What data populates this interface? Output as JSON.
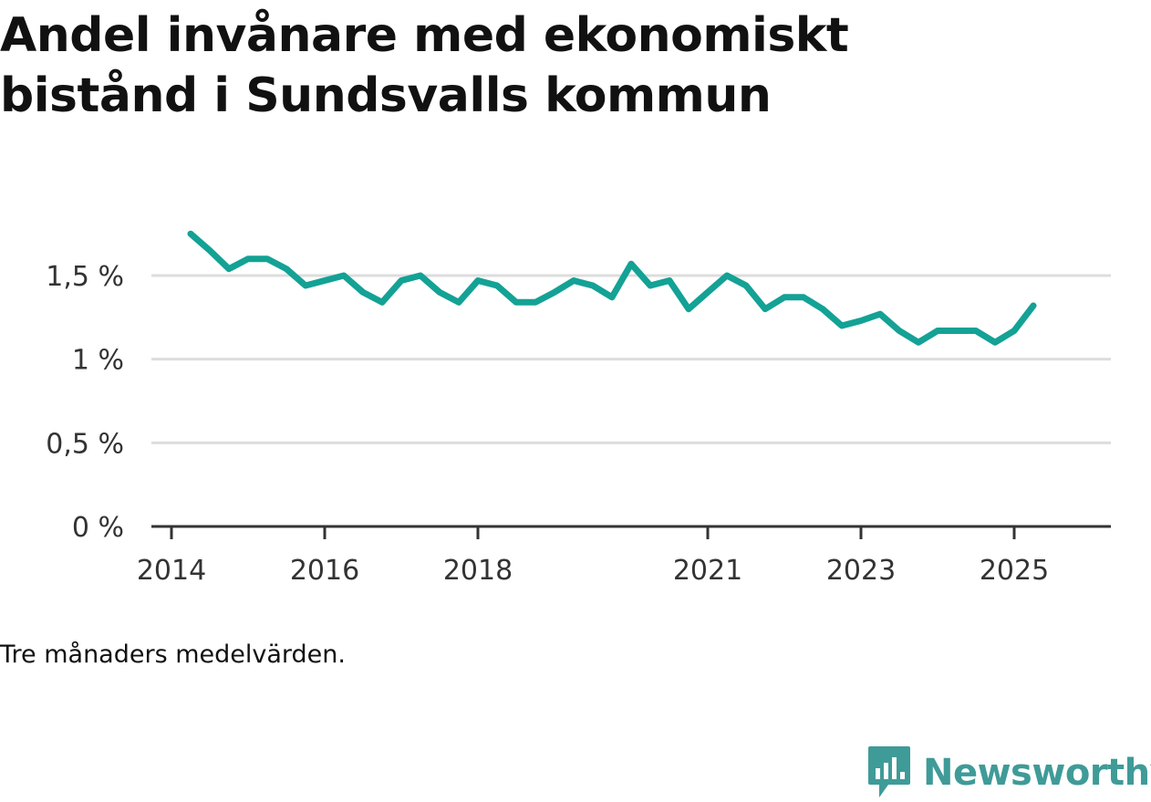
{
  "title": "Andel invånare med ekonomiskt bistånd i Sundsvalls kommun",
  "note": "Tre månaders medelvärden.",
  "logo": {
    "text": "Newsworthy",
    "icon": "chat-bar-chart-icon"
  },
  "colors": {
    "line": "#13a295",
    "grid": "#dddddd",
    "axis": "#333333",
    "logo": "#3f9b98"
  },
  "chart_data": {
    "type": "line",
    "title": "Andel invånare med ekonomiskt bistånd i Sundsvalls kommun",
    "xlabel": "",
    "ylabel": "",
    "grid": true,
    "ylim": [
      0,
      2.0
    ],
    "yticks": [
      {
        "value": 0,
        "label": "0 %"
      },
      {
        "value": 0.5,
        "label": "0,5 %"
      },
      {
        "value": 1,
        "label": "1 %"
      },
      {
        "value": 1.5,
        "label": "1,5 %"
      }
    ],
    "xlim": [
      "2014-01",
      "2025-12"
    ],
    "xticks": [
      {
        "value": "2014-01",
        "label": "2014"
      },
      {
        "value": "2016-01",
        "label": "2016"
      },
      {
        "value": "2018-01",
        "label": "2018"
      },
      {
        "value": "2021-01",
        "label": "2021"
      },
      {
        "value": "2023-01",
        "label": "2023"
      },
      {
        "value": "2025-01",
        "label": "2025"
      }
    ],
    "series": [
      {
        "x": [
          "2014-04",
          "2014-07",
          "2014-10",
          "2015-01",
          "2015-04",
          "2015-07",
          "2015-10",
          "2016-01",
          "2016-04",
          "2016-07",
          "2016-10",
          "2017-01",
          "2017-04",
          "2017-07",
          "2017-10",
          "2018-01",
          "2018-04",
          "2018-07",
          "2018-10",
          "2019-01",
          "2019-04",
          "2019-07",
          "2019-10",
          "2020-01",
          "2020-04",
          "2020-07",
          "2020-10",
          "2021-01",
          "2021-04",
          "2021-07",
          "2021-10",
          "2022-01",
          "2022-04",
          "2022-07",
          "2022-10",
          "2023-01",
          "2023-04",
          "2023-07",
          "2023-10",
          "2024-01",
          "2024-04",
          "2024-07",
          "2024-10",
          "2025-01",
          "2025-04"
        ],
        "values": [
          1.75,
          1.65,
          1.54,
          1.6,
          1.6,
          1.54,
          1.44,
          1.47,
          1.5,
          1.4,
          1.34,
          1.47,
          1.5,
          1.4,
          1.34,
          1.47,
          1.44,
          1.34,
          1.34,
          1.4,
          1.47,
          1.44,
          1.37,
          1.57,
          1.44,
          1.47,
          1.3,
          1.4,
          1.5,
          1.44,
          1.3,
          1.37,
          1.37,
          1.3,
          1.2,
          1.23,
          1.27,
          1.17,
          1.1,
          1.17,
          1.17,
          1.17,
          1.1,
          1.17,
          1.32
        ]
      }
    ]
  }
}
